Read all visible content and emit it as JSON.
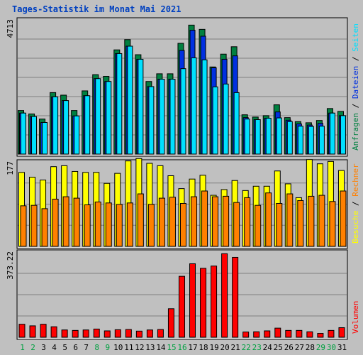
{
  "chart_data": {
    "type": "bar",
    "title": "Tages-Statistik im Monat Mai 2021",
    "colors": {
      "background": "#c0c0c0",
      "plot_bg": "#c0c0c0",
      "grid": "#808080",
      "anfragen": "#008040",
      "dateien": "#0030e0",
      "seiten": "#00e0ff",
      "besuche": "#ffff00",
      "rechner": "#ff8000",
      "volumen": "#ff0000",
      "weekday_label": "#000000",
      "weekend_label": "#00a040",
      "title": "#0040c0"
    },
    "days": [
      "1",
      "2",
      "3",
      "4",
      "5",
      "6",
      "7",
      "8",
      "9",
      "10",
      "11",
      "12",
      "13",
      "14",
      "15",
      "16",
      "17",
      "18",
      "19",
      "20",
      "21",
      "22",
      "23",
      "24",
      "25",
      "26",
      "27",
      "28",
      "29",
      "30",
      "31"
    ],
    "weekend_days": [
      "1",
      "2",
      "8",
      "9",
      "15",
      "16",
      "22",
      "23",
      "29",
      "30"
    ],
    "panels": [
      {
        "name": "top",
        "ytick": "4713",
        "ymax": 4713,
        "series": [
          {
            "name": "Anfragen",
            "values": [
              1530,
              1410,
              1230,
              2160,
              2070,
              1530,
              2220,
              2790,
              2730,
              3660,
              4020,
              3490,
              2550,
              2820,
              2820,
              3890,
              4530,
              4380,
              3060,
              3510,
              3770,
              1380,
              1300,
              1350,
              1730,
              1280,
              1140,
              1100,
              1180,
              1600,
              1500
            ]
          },
          {
            "name": "Dateien",
            "values": [
              1440,
              1320,
              1110,
              2010,
              1880,
              1340,
              2050,
              2650,
              2550,
              3530,
              3790,
              3330,
              2370,
              2630,
              2630,
              3640,
              4350,
              4140,
              3030,
              3330,
              3450,
              1280,
              1210,
              1260,
              1480,
              1190,
              1060,
              1020,
              1080,
              1440,
              1350
            ]
          },
          {
            "name": "Seiten",
            "values": [
              1440,
              1320,
              1110,
              2010,
              1880,
              1340,
              2050,
              2650,
              2550,
              3530,
              3790,
              3330,
              2370,
              2630,
              2630,
              3000,
              3380,
              3310,
              2360,
              2460,
              2160,
              1230,
              1210,
              1260,
              1270,
              1140,
              980,
              970,
              980,
              1440,
              1350
            ]
          }
        ],
        "legend": [
          "Anfragen",
          "Dateien",
          "Seiten"
        ]
      },
      {
        "name": "mid",
        "ytick": "177",
        "ymax": 177,
        "series": [
          {
            "name": "Besuche",
            "values": [
              155,
              145,
              139,
              167,
              169,
              157,
              155,
              155,
              132,
              153,
              179,
              184,
              174,
              169,
              148,
              121,
              141,
              149,
              107,
              119,
              138,
              117,
              126,
              126,
              158,
              131,
              102,
              182,
              173,
              178,
              159
            ]
          },
          {
            "name": "Rechner",
            "values": [
              85,
              86,
              79,
              99,
              104,
              101,
              87,
              93,
              91,
              88,
              91,
              110,
              88,
              101,
              103,
              90,
              104,
              116,
              104,
              105,
              92,
              102,
              86,
              112,
              90,
              110,
              96,
              105,
              107,
              94,
              116
            ]
          }
        ],
        "legend": [
          "Besuche",
          "Rechner"
        ]
      },
      {
        "name": "bottom",
        "ytick": "373.22",
        "ymax": 373.22,
        "series": [
          {
            "name": "Volumen",
            "values": [
              57,
              50,
              57,
              46,
              32,
              30,
              32,
              36,
              28,
              33,
              34,
              27,
              32,
              34,
              125,
              267,
              322,
              302,
              312,
              366,
              350,
              23,
              24,
              28,
              40,
              30,
              30,
              24,
              17,
              30,
              42
            ]
          }
        ],
        "legend": [
          "Volumen"
        ]
      }
    ],
    "legend_separator": " / "
  }
}
